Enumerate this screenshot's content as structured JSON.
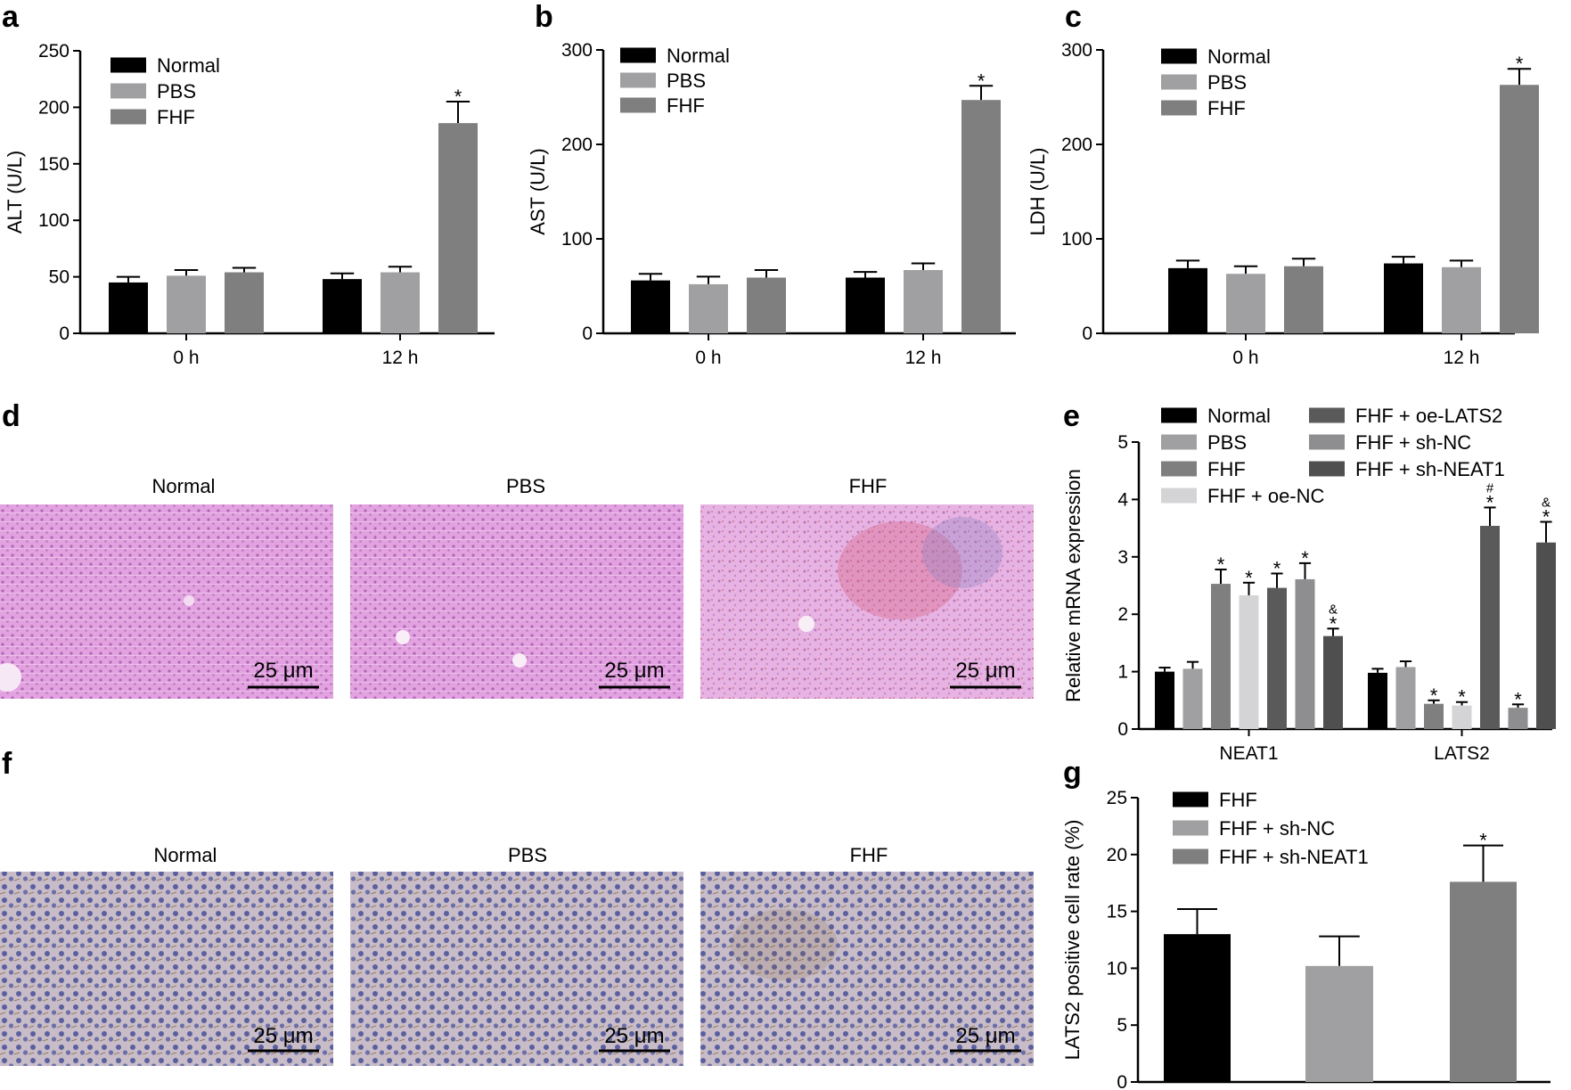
{
  "colors": {
    "normal": "#000000",
    "pbs": "#a0a0a2",
    "fhf": "#7f7f7f",
    "oe_nc": "#d4d4d6",
    "oe_lats2": "#5a5a5a",
    "sh_nc": "#8e8e90",
    "sh_neat1": "#4f4f4f",
    "he_stain": "#dd9cdc",
    "ihc_stain": "#b8aec6"
  },
  "chart_data": [
    {
      "id": "a",
      "type": "bar",
      "panel_label": "a",
      "ylabel": "ALT (U/L)",
      "ylim": [
        0,
        250
      ],
      "yticks": [
        0,
        50,
        100,
        150,
        200,
        250
      ],
      "categories": [
        "0 h",
        "12 h"
      ],
      "series": [
        {
          "name": "Normal",
          "color": "#000000",
          "values": [
            45,
            48
          ],
          "errors": [
            5,
            5
          ],
          "marks": [
            "",
            ""
          ]
        },
        {
          "name": "PBS",
          "color": "#a0a0a2",
          "values": [
            51,
            54
          ],
          "errors": [
            5,
            5
          ],
          "marks": [
            "",
            ""
          ]
        },
        {
          "name": "FHF",
          "color": "#7f7f7f",
          "values": [
            54,
            186
          ],
          "errors": [
            4,
            19
          ],
          "marks": [
            "",
            "*"
          ]
        }
      ],
      "legend": "top-left"
    },
    {
      "id": "b",
      "type": "bar",
      "panel_label": "b",
      "ylabel": "AST (U/L)",
      "ylim": [
        0,
        300
      ],
      "yticks": [
        0,
        100,
        200,
        300
      ],
      "categories": [
        "0 h",
        "12 h"
      ],
      "series": [
        {
          "name": "Normal",
          "color": "#000000",
          "values": [
            56,
            59
          ],
          "errors": [
            7,
            6
          ],
          "marks": [
            "",
            ""
          ]
        },
        {
          "name": "PBS",
          "color": "#a0a0a2",
          "values": [
            52,
            67
          ],
          "errors": [
            8,
            7
          ],
          "marks": [
            "",
            ""
          ]
        },
        {
          "name": "FHF",
          "color": "#7f7f7f",
          "values": [
            59,
            247
          ],
          "errors": [
            8,
            15
          ],
          "marks": [
            "",
            "*"
          ]
        }
      ],
      "legend": "top-left"
    },
    {
      "id": "c",
      "type": "bar",
      "panel_label": "c",
      "ylabel": "LDH (U/L)",
      "ylim": [
        0,
        300
      ],
      "yticks": [
        0,
        100,
        200,
        300
      ],
      "categories": [
        "0 h",
        "12 h"
      ],
      "series": [
        {
          "name": "Normal",
          "color": "#000000",
          "values": [
            69,
            74
          ],
          "errors": [
            8,
            7
          ],
          "marks": [
            "",
            ""
          ]
        },
        {
          "name": "PBS",
          "color": "#a0a0a2",
          "values": [
            63,
            70
          ],
          "errors": [
            8,
            7
          ],
          "marks": [
            "",
            ""
          ]
        },
        {
          "name": "FHF",
          "color": "#7f7f7f",
          "values": [
            71,
            263
          ],
          "errors": [
            8,
            17
          ],
          "marks": [
            "",
            "*"
          ]
        }
      ],
      "legend": "top-left"
    },
    {
      "id": "e",
      "type": "bar",
      "panel_label": "e",
      "ylabel": "Relative mRNA expression",
      "ylim": [
        0,
        5
      ],
      "yticks": [
        0,
        1,
        2,
        3,
        4,
        5
      ],
      "categories": [
        "NEAT1",
        "LATS2"
      ],
      "series": [
        {
          "name": "Normal",
          "color": "#000000",
          "values": [
            1.0,
            0.98
          ],
          "errors": [
            0.07,
            0.07
          ],
          "marks": [
            "",
            ""
          ]
        },
        {
          "name": "PBS",
          "color": "#a0a0a2",
          "values": [
            1.05,
            1.08
          ],
          "errors": [
            0.12,
            0.1
          ],
          "marks": [
            "",
            ""
          ]
        },
        {
          "name": "FHF",
          "color": "#7f7f7f",
          "values": [
            2.53,
            0.44
          ],
          "errors": [
            0.25,
            0.06
          ],
          "marks": [
            "*",
            "*"
          ]
        },
        {
          "name": "FHF + oe-NC",
          "color": "#d4d4d6",
          "values": [
            2.33,
            0.41
          ],
          "errors": [
            0.22,
            0.06
          ],
          "marks": [
            "*",
            "*"
          ]
        },
        {
          "name": "FHF + oe-LATS2",
          "color": "#5a5a5a",
          "values": [
            2.46,
            3.54
          ],
          "errors": [
            0.25,
            0.32
          ],
          "marks": [
            "*",
            "#\n*"
          ]
        },
        {
          "name": "FHF + sh-NC",
          "color": "#8e8e90",
          "values": [
            2.61,
            0.37
          ],
          "errors": [
            0.28,
            0.06
          ],
          "marks": [
            "*",
            "*"
          ]
        },
        {
          "name": "FHF + sh-NEAT1",
          "color": "#4f4f4f",
          "values": [
            1.62,
            3.25
          ],
          "errors": [
            0.13,
            0.36
          ],
          "marks": [
            "&\n*",
            "&\n*"
          ]
        }
      ],
      "legend": "top, two columns"
    },
    {
      "id": "g",
      "type": "bar",
      "panel_label": "g",
      "ylabel": "LATS2 positive cell rate (%)",
      "ylim": [
        0,
        25
      ],
      "yticks": [
        0,
        5,
        10,
        15,
        20,
        25
      ],
      "categories": [
        "FHF",
        "FHF + sh-NC",
        "FHF + sh-NEAT1"
      ],
      "values": [
        13.0,
        10.2,
        17.6
      ],
      "errors": [
        2.2,
        2.6,
        3.2
      ],
      "colors": [
        "#000000",
        "#a0a0a2",
        "#7f7f7f"
      ],
      "marks": [
        "",
        "",
        "*"
      ],
      "legend": "top-left"
    }
  ],
  "micrographs": {
    "d": {
      "panel_label": "d",
      "stain": "H&E",
      "titles": [
        "Normal",
        "PBS",
        "FHF"
      ],
      "scale_bar": "25 μm"
    },
    "f": {
      "panel_label": "f",
      "stain": "IHC",
      "titles": [
        "Normal",
        "PBS",
        "FHF"
      ],
      "scale_bar": "25 μm"
    }
  }
}
